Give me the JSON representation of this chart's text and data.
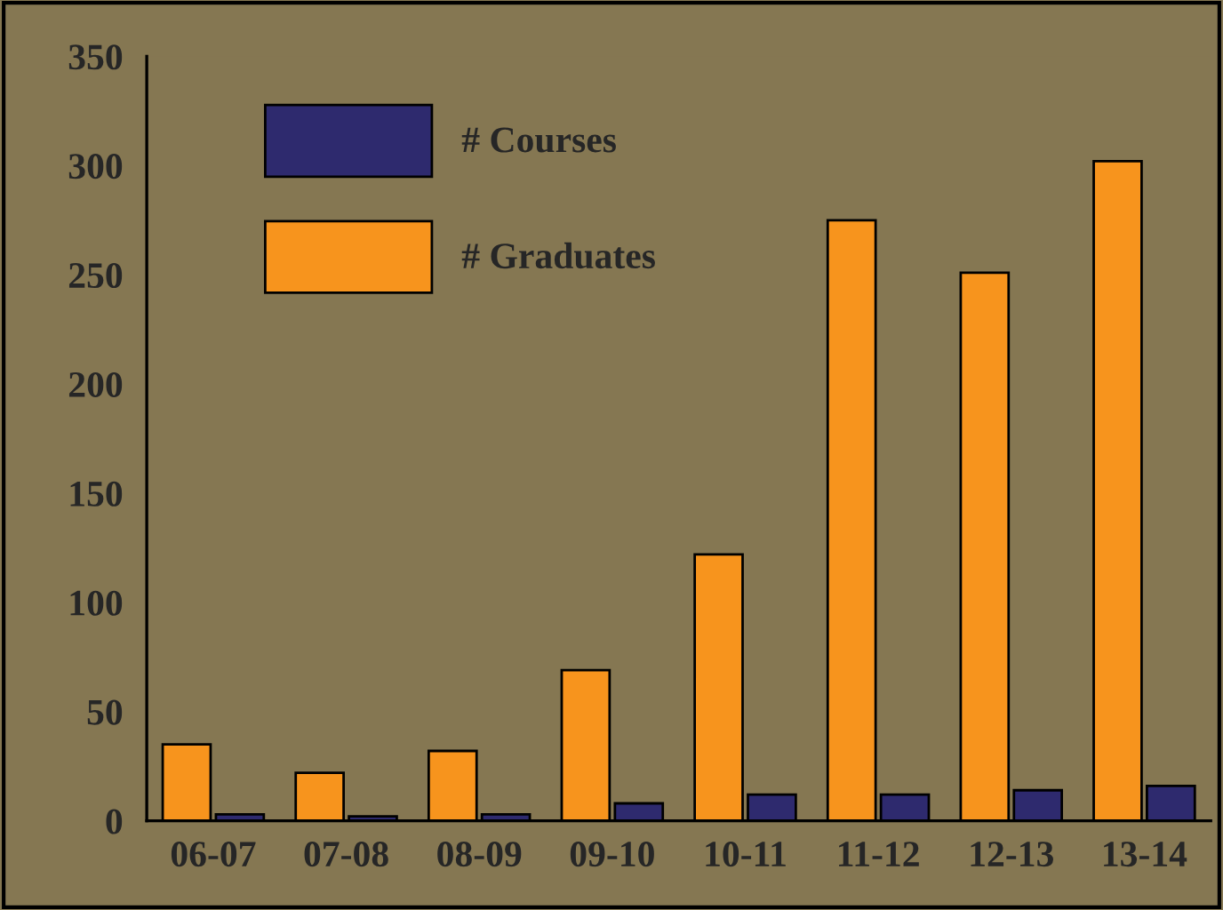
{
  "chart_data": {
    "type": "bar",
    "categories": [
      "06-07",
      "07-08",
      "08-09",
      "09-10",
      "10-11",
      "11-12",
      "12-13",
      "13-14"
    ],
    "series": [
      {
        "name": "# Graduates",
        "color": "#f7941d",
        "values": [
          35,
          22,
          32,
          69,
          122,
          275,
          251,
          302
        ]
      },
      {
        "name": "# Courses",
        "color": "#2e2a6e",
        "values": [
          3,
          2,
          3,
          8,
          12,
          12,
          14,
          16
        ]
      }
    ],
    "ylim": [
      0,
      350
    ],
    "yticks": [
      0,
      50,
      100,
      150,
      200,
      250,
      300,
      350
    ],
    "grid": false,
    "legend": "top left"
  }
}
